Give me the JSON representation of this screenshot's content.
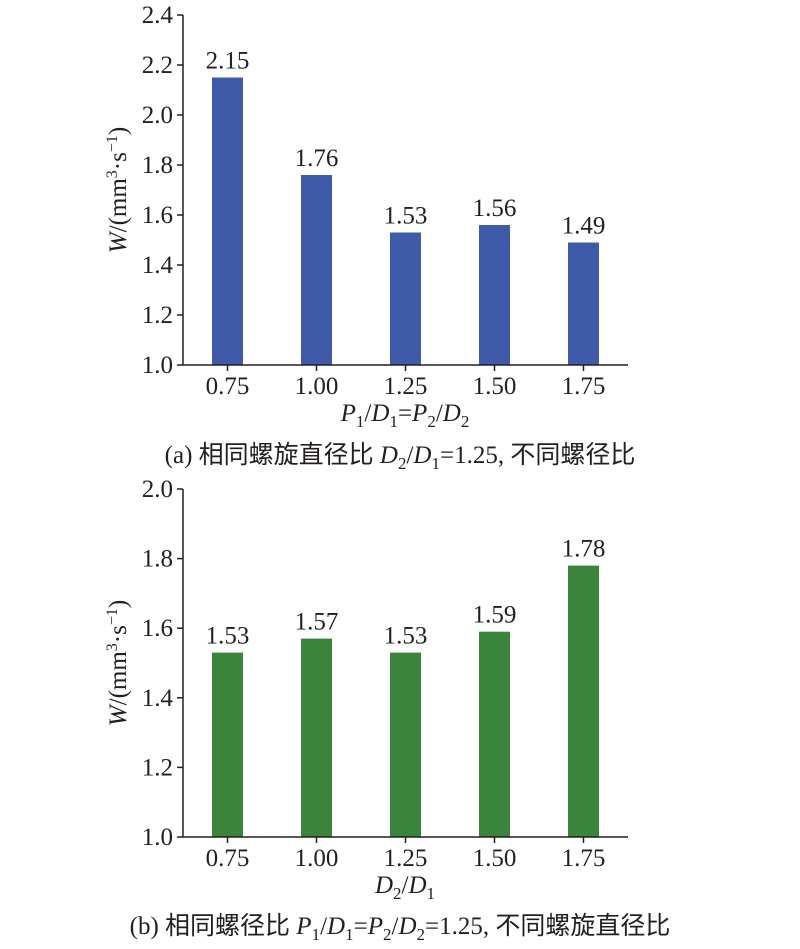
{
  "chart_data": [
    {
      "type": "bar",
      "categories": [
        "0.75",
        "1.00",
        "1.25",
        "1.50",
        "1.75"
      ],
      "values": [
        2.15,
        1.76,
        1.53,
        1.56,
        1.49
      ],
      "value_labels": [
        "2.15",
        "1.76",
        "1.53",
        "1.56",
        "1.49"
      ],
      "ylim": [
        1.0,
        2.4
      ],
      "yticks": [
        "1.0",
        "1.2",
        "1.4",
        "1.6",
        "1.8",
        "2.0",
        "2.2",
        "2.4"
      ],
      "ylabel": "W/(mm³·s⁻¹)",
      "xlabel": "P1/D1=P2/D2",
      "caption": "(a) 相同螺旋直径比 D2/D1=1.25, 不同螺径比",
      "bar_color": "#3f5aa8",
      "grid": false
    },
    {
      "type": "bar",
      "categories": [
        "0.75",
        "1.00",
        "1.25",
        "1.50",
        "1.75"
      ],
      "values": [
        1.53,
        1.57,
        1.53,
        1.59,
        1.78
      ],
      "value_labels": [
        "1.53",
        "1.57",
        "1.53",
        "1.59",
        "1.78"
      ],
      "ylim": [
        1.0,
        2.0
      ],
      "yticks": [
        "1.0",
        "1.2",
        "1.4",
        "1.6",
        "1.8",
        "2.0"
      ],
      "ylabel": "W/(mm³·s⁻¹)",
      "xlabel": "D2/D1",
      "caption": "(b) 相同螺径比 P1/D1=P2/D2=1.25, 不同螺旋直径比",
      "bar_color": "#3a853b",
      "grid": false
    }
  ]
}
